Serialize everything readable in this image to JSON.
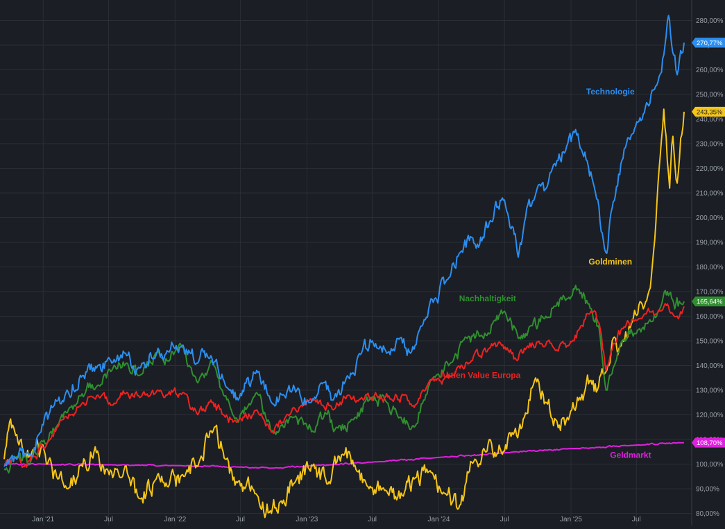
{
  "chart_data": {
    "type": "line",
    "title": "",
    "xlabel": "",
    "ylabel": "",
    "unit": "%",
    "x_range": [
      "2020-09-15",
      "2025-11-10"
    ],
    "ylim": [
      80,
      284
    ],
    "grid": true,
    "y_axis_side": "right",
    "yticks": [
      {
        "value": 80,
        "label": "80,00%"
      },
      {
        "value": 90,
        "label": "90,00%"
      },
      {
        "value": 100,
        "label": "100,00%"
      },
      {
        "value": 110,
        "label": "110,00%"
      },
      {
        "value": 120,
        "label": "120,00%"
      },
      {
        "value": 130,
        "label": "130,00%"
      },
      {
        "value": 140,
        "label": "140,00%"
      },
      {
        "value": 150,
        "label": "150,00%"
      },
      {
        "value": 160,
        "label": "160,00%"
      },
      {
        "value": 170,
        "label": "170,00%"
      },
      {
        "value": 180,
        "label": "180,00%"
      },
      {
        "value": 190,
        "label": "190,00%"
      },
      {
        "value": 200,
        "label": "200,00%"
      },
      {
        "value": 210,
        "label": "210,00%"
      },
      {
        "value": 220,
        "label": "220,00%"
      },
      {
        "value": 230,
        "label": "230,00%"
      },
      {
        "value": 240,
        "label": "240,00%"
      },
      {
        "value": 250,
        "label": "250,00%"
      },
      {
        "value": 260,
        "label": "260,00%"
      },
      {
        "value": 270,
        "label": "270,00%"
      },
      {
        "value": 280,
        "label": "280,00%"
      }
    ],
    "xticks": [
      {
        "date": "2021-01-01",
        "label": "Jan '21"
      },
      {
        "date": "2021-07-01",
        "label": "Jul"
      },
      {
        "date": "2022-01-01",
        "label": "Jan '22"
      },
      {
        "date": "2022-07-01",
        "label": "Jul"
      },
      {
        "date": "2023-01-01",
        "label": "Jan '23"
      },
      {
        "date": "2023-07-01",
        "label": "Jul"
      },
      {
        "date": "2024-01-01",
        "label": "Jan '24"
      },
      {
        "date": "2024-07-01",
        "label": "Jul"
      },
      {
        "date": "2025-01-01",
        "label": "Jan '25"
      },
      {
        "date": "2025-07-01",
        "label": "Jul"
      }
    ],
    "series": [
      {
        "name": "Technologie",
        "color": "#2b8ef0",
        "last_value_label": "270,77%",
        "label_anchor": {
          "date": "2025-04-20",
          "value": 250
        },
        "points": [
          [
            "2020-09-15",
            99
          ],
          [
            "2020-10-20",
            102
          ],
          [
            "2020-11-25",
            104
          ],
          [
            "2020-12-20",
            112
          ],
          [
            "2021-02-01",
            124
          ],
          [
            "2021-03-05",
            129
          ],
          [
            "2021-04-20",
            136
          ],
          [
            "2021-06-01",
            140
          ],
          [
            "2021-07-10",
            141
          ],
          [
            "2021-08-20",
            144
          ],
          [
            "2021-09-25",
            139
          ],
          [
            "2021-11-15",
            147
          ],
          [
            "2021-12-10",
            146
          ],
          [
            "2022-01-20",
            148
          ],
          [
            "2022-03-05",
            141
          ],
          [
            "2022-04-10",
            144
          ],
          [
            "2022-05-20",
            132
          ],
          [
            "2022-06-25",
            126
          ],
          [
            "2022-08-15",
            138
          ],
          [
            "2022-09-25",
            125
          ],
          [
            "2022-10-25",
            128
          ],
          [
            "2022-11-25",
            132
          ],
          [
            "2023-01-10",
            125
          ],
          [
            "2023-02-10",
            133
          ],
          [
            "2023-03-15",
            126
          ],
          [
            "2023-04-20",
            135
          ],
          [
            "2023-06-01",
            145
          ],
          [
            "2023-07-01",
            150
          ],
          [
            "2023-08-10",
            145
          ],
          [
            "2023-09-10",
            151
          ],
          [
            "2023-10-15",
            145
          ],
          [
            "2023-11-15",
            156
          ],
          [
            "2023-12-20",
            167
          ],
          [
            "2024-02-01",
            176
          ],
          [
            "2024-03-01",
            186
          ],
          [
            "2024-04-01",
            192
          ],
          [
            "2024-04-20",
            188
          ],
          [
            "2024-05-20",
            198
          ],
          [
            "2024-06-25",
            208
          ],
          [
            "2024-07-25",
            196
          ],
          [
            "2024-08-08",
            184
          ],
          [
            "2024-08-25",
            198
          ],
          [
            "2024-09-20",
            207
          ],
          [
            "2024-10-25",
            212
          ],
          [
            "2024-11-20",
            221
          ],
          [
            "2024-12-20",
            229
          ],
          [
            "2025-01-20",
            234
          ],
          [
            "2025-02-15",
            223
          ],
          [
            "2025-03-10",
            210
          ],
          [
            "2025-04-07",
            186
          ],
          [
            "2025-04-25",
            204
          ],
          [
            "2025-05-25",
            224
          ],
          [
            "2025-06-20",
            234
          ],
          [
            "2025-07-20",
            242
          ],
          [
            "2025-08-20",
            252
          ],
          [
            "2025-09-15",
            266
          ],
          [
            "2025-09-28",
            282
          ],
          [
            "2025-10-12",
            266
          ],
          [
            "2025-10-22",
            258
          ],
          [
            "2025-11-10",
            271
          ]
        ]
      },
      {
        "name": "Goldminen",
        "color": "#f5c518",
        "last_value_label": "243,35%",
        "label_anchor": {
          "date": "2025-04-20",
          "value": 181
        },
        "points": [
          [
            "2020-09-15",
            102
          ],
          [
            "2020-09-30",
            117
          ],
          [
            "2020-10-20",
            112
          ],
          [
            "2020-11-10",
            103
          ],
          [
            "2020-11-25",
            104
          ],
          [
            "2020-12-15",
            110
          ],
          [
            "2021-01-10",
            100
          ],
          [
            "2021-02-10",
            94
          ],
          [
            "2021-03-10",
            90
          ],
          [
            "2021-04-20",
            99
          ],
          [
            "2021-05-25",
            107
          ],
          [
            "2021-06-20",
            96
          ],
          [
            "2021-07-25",
            98
          ],
          [
            "2021-08-25",
            95
          ],
          [
            "2021-09-25",
            86
          ],
          [
            "2021-11-10",
            94
          ],
          [
            "2021-12-10",
            91
          ],
          [
            "2022-01-25",
            95
          ],
          [
            "2022-03-05",
            99
          ],
          [
            "2022-04-20",
            115
          ],
          [
            "2022-05-20",
            102
          ],
          [
            "2022-06-25",
            93
          ],
          [
            "2022-08-10",
            88
          ],
          [
            "2022-09-25",
            80
          ],
          [
            "2022-10-25",
            84
          ],
          [
            "2022-11-25",
            92
          ],
          [
            "2023-01-20",
            100
          ],
          [
            "2023-02-25",
            92
          ],
          [
            "2023-04-10",
            104
          ],
          [
            "2023-05-20",
            97
          ],
          [
            "2023-06-25",
            91
          ],
          [
            "2023-08-10",
            89
          ],
          [
            "2023-09-25",
            87
          ],
          [
            "2023-10-25",
            94
          ],
          [
            "2023-12-05",
            97
          ],
          [
            "2024-01-20",
            88
          ],
          [
            "2024-02-25",
            82
          ],
          [
            "2024-04-10",
            102
          ],
          [
            "2024-05-20",
            110
          ],
          [
            "2024-06-25",
            104
          ],
          [
            "2024-07-25",
            112
          ],
          [
            "2024-08-25",
            119
          ],
          [
            "2024-09-25",
            135
          ],
          [
            "2024-10-25",
            125
          ],
          [
            "2024-11-20",
            118
          ],
          [
            "2024-12-25",
            118
          ],
          [
            "2025-01-25",
            127
          ],
          [
            "2025-02-25",
            134
          ],
          [
            "2025-03-15",
            130
          ],
          [
            "2025-04-10",
            138
          ],
          [
            "2025-04-25",
            150
          ],
          [
            "2025-05-20",
            148
          ],
          [
            "2025-06-20",
            158
          ],
          [
            "2025-07-20",
            163
          ],
          [
            "2025-08-15",
            182
          ],
          [
            "2025-09-05",
            225
          ],
          [
            "2025-09-15",
            244
          ],
          [
            "2025-10-01",
            212
          ],
          [
            "2025-10-10",
            233
          ],
          [
            "2025-10-22",
            214
          ],
          [
            "2025-11-10",
            243
          ]
        ]
      },
      {
        "name": "Nachhaltigkeit",
        "color": "#2f8f2f",
        "last_value_label": "165,64%",
        "label_anchor": {
          "date": "2024-05-15",
          "value": 166
        },
        "points": [
          [
            "2020-09-15",
            98
          ],
          [
            "2020-10-20",
            103
          ],
          [
            "2020-11-25",
            100
          ],
          [
            "2020-12-25",
            109
          ],
          [
            "2021-02-10",
            116
          ],
          [
            "2021-03-15",
            123
          ],
          [
            "2021-04-25",
            128
          ],
          [
            "2021-06-01",
            132
          ],
          [
            "2021-07-10",
            138
          ],
          [
            "2021-08-20",
            141
          ],
          [
            "2021-09-25",
            136
          ],
          [
            "2021-11-15",
            146
          ],
          [
            "2021-12-10",
            142
          ],
          [
            "2022-01-15",
            149
          ],
          [
            "2022-03-05",
            133
          ],
          [
            "2022-04-10",
            142
          ],
          [
            "2022-05-15",
            128
          ],
          [
            "2022-06-25",
            117
          ],
          [
            "2022-08-15",
            129
          ],
          [
            "2022-09-25",
            113
          ],
          [
            "2022-10-25",
            116
          ],
          [
            "2022-11-25",
            119
          ],
          [
            "2023-01-20",
            113
          ],
          [
            "2023-02-20",
            121
          ],
          [
            "2023-03-25",
            115
          ],
          [
            "2023-05-10",
            118
          ],
          [
            "2023-06-25",
            127
          ],
          [
            "2023-08-10",
            125
          ],
          [
            "2023-09-15",
            119
          ],
          [
            "2023-10-25",
            115
          ],
          [
            "2023-11-20",
            126
          ],
          [
            "2023-12-25",
            136
          ],
          [
            "2024-02-10",
            142
          ],
          [
            "2024-03-20",
            151
          ],
          [
            "2024-04-25",
            152
          ],
          [
            "2024-06-01",
            158
          ],
          [
            "2024-07-01",
            162
          ],
          [
            "2024-08-08",
            151
          ],
          [
            "2024-09-10",
            156
          ],
          [
            "2024-10-20",
            159
          ],
          [
            "2024-11-15",
            164
          ],
          [
            "2024-12-20",
            167
          ],
          [
            "2025-01-20",
            171
          ],
          [
            "2025-02-20",
            165
          ],
          [
            "2025-03-20",
            155
          ],
          [
            "2025-04-08",
            130
          ],
          [
            "2025-05-01",
            140
          ],
          [
            "2025-06-01",
            150
          ],
          [
            "2025-07-01",
            153
          ],
          [
            "2025-08-01",
            157
          ],
          [
            "2025-09-01",
            162
          ],
          [
            "2025-09-25",
            170
          ],
          [
            "2025-10-15",
            163
          ],
          [
            "2025-11-10",
            166
          ]
        ]
      },
      {
        "name": "Aktien Value Europa",
        "color": "#ee2222",
        "last_value_label": "",
        "label_anchor": {
          "date": "2024-04-25",
          "value": 135
        },
        "points": [
          [
            "2020-09-15",
            100
          ],
          [
            "2020-10-20",
            102
          ],
          [
            "2020-11-10",
            99
          ],
          [
            "2020-12-05",
            103
          ],
          [
            "2021-01-20",
            110
          ],
          [
            "2021-03-01",
            119
          ],
          [
            "2021-04-20",
            125
          ],
          [
            "2021-06-01",
            128
          ],
          [
            "2021-07-10",
            124
          ],
          [
            "2021-08-20",
            129
          ],
          [
            "2021-09-25",
            127
          ],
          [
            "2021-11-15",
            130
          ],
          [
            "2021-12-10",
            128
          ],
          [
            "2022-01-25",
            129
          ],
          [
            "2022-03-05",
            120
          ],
          [
            "2022-04-10",
            126
          ],
          [
            "2022-05-20",
            119
          ],
          [
            "2022-06-20",
            117
          ],
          [
            "2022-08-15",
            122
          ],
          [
            "2022-09-25",
            113
          ],
          [
            "2022-10-25",
            117
          ],
          [
            "2022-11-25",
            123
          ],
          [
            "2023-01-20",
            126
          ],
          [
            "2023-03-15",
            122
          ],
          [
            "2023-04-25",
            128
          ],
          [
            "2023-06-01",
            127
          ],
          [
            "2023-07-10",
            129
          ],
          [
            "2023-08-25",
            126
          ],
          [
            "2023-09-25",
            128
          ],
          [
            "2023-10-25",
            123
          ],
          [
            "2023-11-25",
            130
          ],
          [
            "2023-12-25",
            134
          ],
          [
            "2024-02-10",
            136
          ],
          [
            "2024-03-25",
            141
          ],
          [
            "2024-05-20",
            147
          ],
          [
            "2024-06-20",
            149
          ],
          [
            "2024-08-05",
            142
          ],
          [
            "2024-08-25",
            147
          ],
          [
            "2024-10-10",
            149
          ],
          [
            "2024-11-20",
            146
          ],
          [
            "2024-12-25",
            148
          ],
          [
            "2025-01-25",
            155
          ],
          [
            "2025-02-25",
            162
          ],
          [
            "2025-03-20",
            157
          ],
          [
            "2025-04-08",
            138
          ],
          [
            "2025-04-28",
            149
          ],
          [
            "2025-05-25",
            155
          ],
          [
            "2025-06-25",
            158
          ],
          [
            "2025-07-25",
            161
          ],
          [
            "2025-08-25",
            161
          ],
          [
            "2025-09-25",
            165
          ],
          [
            "2025-10-25",
            159
          ],
          [
            "2025-11-10",
            164
          ]
        ]
      },
      {
        "name": "Geldmarkt",
        "color": "#e020e0",
        "last_value_label": "108,70%",
        "label_anchor": {
          "date": "2025-06-15",
          "value": 102.5
        },
        "points": [
          [
            "2020-09-15",
            100
          ],
          [
            "2021-01-01",
            100
          ],
          [
            "2021-07-01",
            99.7
          ],
          [
            "2022-01-01",
            99.4
          ],
          [
            "2022-07-01",
            98.8
          ],
          [
            "2022-10-01",
            98.4
          ],
          [
            "2023-01-01",
            99.2
          ],
          [
            "2023-07-01",
            100.8
          ],
          [
            "2024-01-01",
            102.7
          ],
          [
            "2024-07-01",
            104.6
          ],
          [
            "2025-01-01",
            106.3
          ],
          [
            "2025-07-01",
            107.7
          ],
          [
            "2025-11-10",
            108.7
          ]
        ]
      }
    ]
  }
}
